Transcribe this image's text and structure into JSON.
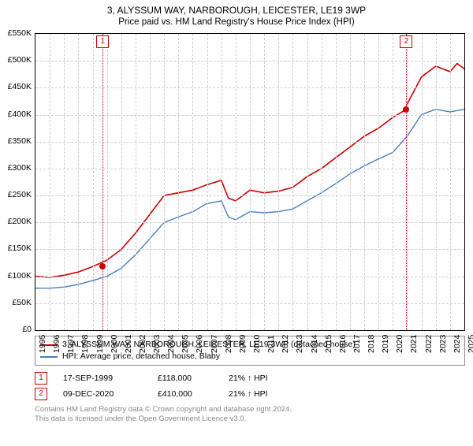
{
  "title": "3, ALYSSUM WAY, NARBOROUGH, LEICESTER, LE19 3WP",
  "subtitle": "Price paid vs. HM Land Registry's House Price Index (HPI)",
  "chart": {
    "type": "line",
    "background_color": "#ffffff",
    "grid_color": "#cccccc",
    "ylabel_fontsize": 10.5,
    "xlabel_fontsize": 10.5,
    "ylim": [
      0,
      550
    ],
    "ytick_step": 50,
    "ytick_prefix": "£",
    "ytick_suffix": "K",
    "xlim": [
      1995,
      2025
    ],
    "xtick_step": 1,
    "series": [
      {
        "name": "3, ALYSSUM WAY, NARBOROUGH, LEICESTER, LE19 3WP (detached house)",
        "color": "#cc0000",
        "width": 1.6,
        "points": [
          [
            1995,
            100
          ],
          [
            1996,
            98
          ],
          [
            1997,
            102
          ],
          [
            1998,
            108
          ],
          [
            1999,
            118
          ],
          [
            2000,
            130
          ],
          [
            2001,
            150
          ],
          [
            2002,
            180
          ],
          [
            2003,
            215
          ],
          [
            2004,
            250
          ],
          [
            2005,
            255
          ],
          [
            2006,
            260
          ],
          [
            2007,
            270
          ],
          [
            2008,
            278
          ],
          [
            2008.5,
            245
          ],
          [
            2009,
            240
          ],
          [
            2010,
            260
          ],
          [
            2011,
            255
          ],
          [
            2012,
            258
          ],
          [
            2013,
            265
          ],
          [
            2014,
            285
          ],
          [
            2015,
            300
          ],
          [
            2016,
            320
          ],
          [
            2017,
            340
          ],
          [
            2018,
            360
          ],
          [
            2019,
            375
          ],
          [
            2020,
            395
          ],
          [
            2020.94,
            410
          ],
          [
            2021,
            420
          ],
          [
            2022,
            470
          ],
          [
            2023,
            490
          ],
          [
            2024,
            480
          ],
          [
            2024.5,
            495
          ],
          [
            2025,
            485
          ]
        ]
      },
      {
        "name": "HPI: Average price, detached house, Blaby",
        "color": "#4a7ebb",
        "width": 1.4,
        "points": [
          [
            1995,
            78
          ],
          [
            1996,
            78
          ],
          [
            1997,
            80
          ],
          [
            1998,
            85
          ],
          [
            1999,
            92
          ],
          [
            2000,
            100
          ],
          [
            2001,
            115
          ],
          [
            2002,
            140
          ],
          [
            2003,
            170
          ],
          [
            2004,
            200
          ],
          [
            2005,
            210
          ],
          [
            2006,
            220
          ],
          [
            2007,
            235
          ],
          [
            2008,
            240
          ],
          [
            2008.5,
            210
          ],
          [
            2009,
            205
          ],
          [
            2010,
            220
          ],
          [
            2011,
            218
          ],
          [
            2012,
            220
          ],
          [
            2013,
            225
          ],
          [
            2014,
            240
          ],
          [
            2015,
            255
          ],
          [
            2016,
            272
          ],
          [
            2017,
            290
          ],
          [
            2018,
            305
          ],
          [
            2019,
            318
          ],
          [
            2020,
            330
          ],
          [
            2021,
            360
          ],
          [
            2022,
            400
          ],
          [
            2023,
            410
          ],
          [
            2024,
            405
          ],
          [
            2025,
            410
          ]
        ]
      }
    ],
    "markers": [
      {
        "n": "1",
        "x": 1999.71,
        "y": 118,
        "color": "#cc0000"
      },
      {
        "n": "2",
        "x": 2020.94,
        "y": 410,
        "color": "#cc0000"
      }
    ]
  },
  "legend": [
    {
      "color": "#cc0000",
      "label": "3, ALYSSUM WAY, NARBOROUGH, LEICESTER, LE19 3WP (detached house)"
    },
    {
      "color": "#4a7ebb",
      "label": "HPI: Average price, detached house, Blaby"
    }
  ],
  "footer_rows": [
    {
      "n": "1",
      "color": "#cc0000",
      "date": "17-SEP-1999",
      "price": "£118,000",
      "hpi": "21% ↑ HPI"
    },
    {
      "n": "2",
      "color": "#cc0000",
      "date": "09-DEC-2020",
      "price": "£410,000",
      "hpi": "21% ↑ HPI"
    }
  ],
  "bottom_note_1": "Contains HM Land Registry data © Crown copyright and database right 2024.",
  "bottom_note_2": "This data is licensed under the Open Government Licence v3.0."
}
